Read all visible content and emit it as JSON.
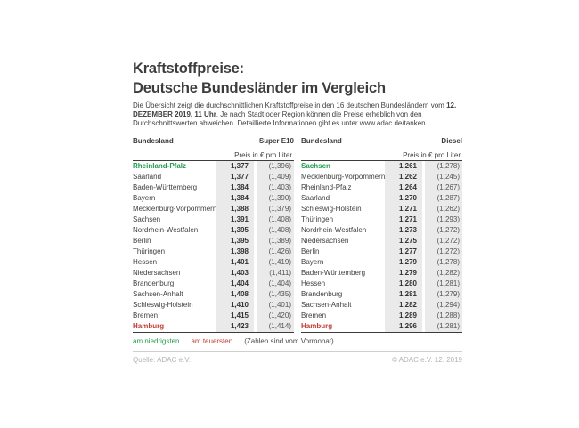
{
  "title": {
    "line1": "Kraftstoffpreise:",
    "line2": "Deutsche Bundesländer im Vergleich"
  },
  "intro": {
    "pre": "Die Übersicht zeigt die durchschnittlichen Kraftstoffpreise in den 16 deutschen Bundesländern vom ",
    "bold": "12. DEZEMBER 2019, 11 Uhr",
    "post": ". Je nach Stadt oder Region können die Preise erheblich von den Durchschnittswerten abweichen. Detaillierte Informationen gibt es unter www.adac.de/tanken."
  },
  "tables": [
    {
      "fuel": "Super E10",
      "col_header": "Bundesland",
      "unit": "Preis in € pro Liter",
      "rows": [
        {
          "name": "Rheinland-Pfalz",
          "price": "1,377",
          "prev": "(1,396)",
          "highlight": "lowest"
        },
        {
          "name": "Saarland",
          "price": "1,377",
          "prev": "(1,409)",
          "highlight": ""
        },
        {
          "name": "Baden-Württemberg",
          "price": "1,384",
          "prev": "(1,403)",
          "highlight": ""
        },
        {
          "name": "Bayern",
          "price": "1,384",
          "prev": "(1,390)",
          "highlight": ""
        },
        {
          "name": "Mecklenburg-Vorpommern",
          "price": "1,388",
          "prev": "(1,379)",
          "highlight": ""
        },
        {
          "name": "Sachsen",
          "price": "1,391",
          "prev": "(1,408)",
          "highlight": ""
        },
        {
          "name": "Nordrhein-Westfalen",
          "price": "1,395",
          "prev": "(1,408)",
          "highlight": ""
        },
        {
          "name": "Berlin",
          "price": "1,395",
          "prev": "(1,389)",
          "highlight": ""
        },
        {
          "name": "Thüringen",
          "price": "1,398",
          "prev": "(1,426)",
          "highlight": ""
        },
        {
          "name": "Hessen",
          "price": "1,401",
          "prev": "(1,419)",
          "highlight": ""
        },
        {
          "name": "Niedersachsen",
          "price": "1,403",
          "prev": "(1,411)",
          "highlight": ""
        },
        {
          "name": "Brandenburg",
          "price": "1,404",
          "prev": "(1,404)",
          "highlight": ""
        },
        {
          "name": "Sachsen-Anhalt",
          "price": "1,408",
          "prev": "(1,435)",
          "highlight": ""
        },
        {
          "name": "Schleswig-Holstein",
          "price": "1,410",
          "prev": "(1,401)",
          "highlight": ""
        },
        {
          "name": "Bremen",
          "price": "1,415",
          "prev": "(1,420)",
          "highlight": ""
        },
        {
          "name": "Hamburg",
          "price": "1,423",
          "prev": "(1,414)",
          "highlight": "highest"
        }
      ]
    },
    {
      "fuel": "Diesel",
      "col_header": "Bundesland",
      "unit": "Preis in € pro Liter",
      "rows": [
        {
          "name": "Sachsen",
          "price": "1,261",
          "prev": "(1,278)",
          "highlight": "lowest"
        },
        {
          "name": "Mecklenburg-Vorpommern",
          "price": "1,262",
          "prev": "(1,245)",
          "highlight": ""
        },
        {
          "name": "Rheinland-Pfalz",
          "price": "1,264",
          "prev": "(1,267)",
          "highlight": ""
        },
        {
          "name": "Saarland",
          "price": "1,270",
          "prev": "(1,287)",
          "highlight": ""
        },
        {
          "name": "Schleswig-Holstein",
          "price": "1,271",
          "prev": "(1,262)",
          "highlight": ""
        },
        {
          "name": "Thüringen",
          "price": "1,271",
          "prev": "(1,293)",
          "highlight": ""
        },
        {
          "name": "Nordrhein-Westfalen",
          "price": "1,273",
          "prev": "(1,272)",
          "highlight": ""
        },
        {
          "name": "Niedersachsen",
          "price": "1,275",
          "prev": "(1,272)",
          "highlight": ""
        },
        {
          "name": "Berlin",
          "price": "1,277",
          "prev": "(1,272)",
          "highlight": ""
        },
        {
          "name": "Bayern",
          "price": "1,279",
          "prev": "(1,278)",
          "highlight": ""
        },
        {
          "name": "Baden-Württemberg",
          "price": "1,279",
          "prev": "(1,282)",
          "highlight": ""
        },
        {
          "name": "Hessen",
          "price": "1,280",
          "prev": "(1,281)",
          "highlight": ""
        },
        {
          "name": "Brandenburg",
          "price": "1,281",
          "prev": "(1,279)",
          "highlight": ""
        },
        {
          "name": "Sachsen-Anhalt",
          "price": "1,282",
          "prev": "(1,294)",
          "highlight": ""
        },
        {
          "name": "Bremen",
          "price": "1,289",
          "prev": "(1,288)",
          "highlight": ""
        },
        {
          "name": "Hamburg",
          "price": "1,296",
          "prev": "(1,281)",
          "highlight": "highest"
        }
      ]
    }
  ],
  "legend": {
    "lowest": "am niedrigsten",
    "highest": "am teuersten",
    "note": "(Zahlen sind vom Vormonat)"
  },
  "footer": {
    "source": "Quelle: ADAC e.V.",
    "copyright": "© ADAC e.V. 12. 2019"
  },
  "colors": {
    "green": "#1f9c4d",
    "red": "#c23b32",
    "cell_background": "#eaeaea",
    "ink": "#3c3c3c"
  },
  "chart_data": [
    {
      "type": "table",
      "title": "Super E10",
      "ylabel": "Preis in € pro Liter",
      "categories": [
        "Rheinland-Pfalz",
        "Saarland",
        "Baden-Württemberg",
        "Bayern",
        "Mecklenburg-Vorpommern",
        "Sachsen",
        "Nordrhein-Westfalen",
        "Berlin",
        "Thüringen",
        "Hessen",
        "Niedersachsen",
        "Brandenburg",
        "Sachsen-Anhalt",
        "Schleswig-Holstein",
        "Bremen",
        "Hamburg"
      ],
      "series": [
        {
          "name": "Preis 12. Dezember 2019",
          "values": [
            1.377,
            1.377,
            1.384,
            1.384,
            1.388,
            1.391,
            1.395,
            1.395,
            1.398,
            1.401,
            1.403,
            1.404,
            1.408,
            1.41,
            1.415,
            1.423
          ]
        },
        {
          "name": "Vormonat",
          "values": [
            1.396,
            1.409,
            1.403,
            1.39,
            1.379,
            1.408,
            1.408,
            1.389,
            1.426,
            1.419,
            1.411,
            1.404,
            1.435,
            1.401,
            1.42,
            1.414
          ]
        }
      ]
    },
    {
      "type": "table",
      "title": "Diesel",
      "ylabel": "Preis in € pro Liter",
      "categories": [
        "Sachsen",
        "Mecklenburg-Vorpommern",
        "Rheinland-Pfalz",
        "Saarland",
        "Schleswig-Holstein",
        "Thüringen",
        "Nordrhein-Westfalen",
        "Niedersachsen",
        "Berlin",
        "Bayern",
        "Baden-Württemberg",
        "Hessen",
        "Brandenburg",
        "Sachsen-Anhalt",
        "Bremen",
        "Hamburg"
      ],
      "series": [
        {
          "name": "Preis 12. Dezember 2019",
          "values": [
            1.261,
            1.262,
            1.264,
            1.27,
            1.271,
            1.271,
            1.273,
            1.275,
            1.277,
            1.279,
            1.279,
            1.28,
            1.281,
            1.282,
            1.289,
            1.296
          ]
        },
        {
          "name": "Vormonat",
          "values": [
            1.278,
            1.245,
            1.267,
            1.287,
            1.262,
            1.293,
            1.272,
            1.272,
            1.272,
            1.278,
            1.282,
            1.281,
            1.279,
            1.294,
            1.288,
            1.281
          ]
        }
      ]
    }
  ]
}
